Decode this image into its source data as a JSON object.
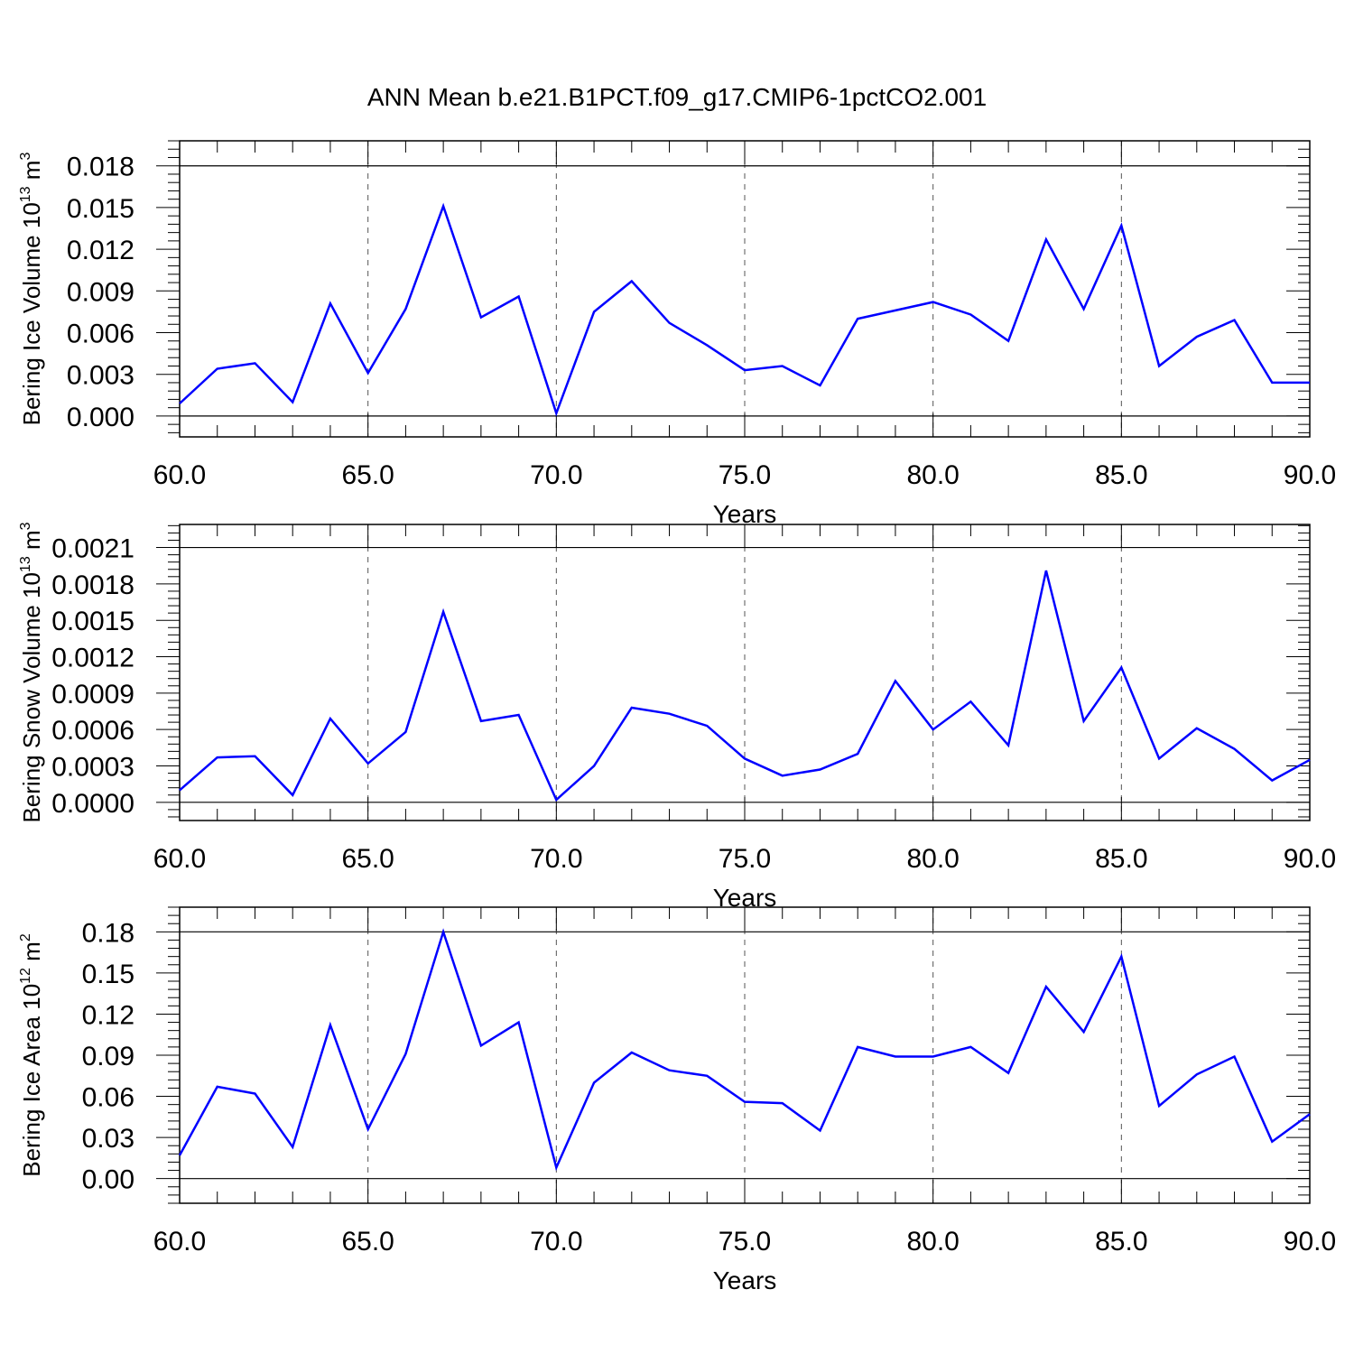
{
  "title": "ANN Mean b.e21.B1PCT.f09_g17.CMIP6-1pctCO2.001",
  "colors": {
    "line": "#0000ff",
    "axis": "#000000",
    "grid": "#555555"
  },
  "chart_data": [
    {
      "type": "line",
      "xlabel": "Years",
      "ylabel": {
        "base": "Bering Ice Volume 10",
        "exp": "13",
        "unit": " m",
        "unit_exp": "3"
      },
      "xlim": [
        60,
        90
      ],
      "ylim": [
        -0.0015,
        0.0198
      ],
      "xticks": [
        60,
        65,
        70,
        75,
        80,
        85,
        90
      ],
      "xtick_labels": [
        "60.0",
        "65.0",
        "70.0",
        "75.0",
        "80.0",
        "85.0",
        "90.0"
      ],
      "yticks": [
        0,
        0.003,
        0.006,
        0.009,
        0.012,
        0.015,
        0.018
      ],
      "ytick_labels": [
        "0.000",
        "0.003",
        "0.006",
        "0.009",
        "0.012",
        "0.015",
        "0.018"
      ],
      "x": [
        60,
        61,
        62,
        63,
        64,
        65,
        66,
        67,
        68,
        69,
        70,
        71,
        72,
        73,
        74,
        75,
        76,
        77,
        78,
        79,
        80,
        81,
        82,
        83,
        84,
        85,
        86,
        87,
        88,
        89,
        90
      ],
      "series": [
        {
          "values": [
            0.0009,
            0.0034,
            0.0038,
            0.001,
            0.0081,
            0.0031,
            0.0077,
            0.0151,
            0.0071,
            0.0086,
            0.0002,
            0.0075,
            0.0097,
            0.0067,
            0.0051,
            0.0033,
            0.0036,
            0.0022,
            0.007,
            0.0076,
            0.0082,
            0.0073,
            0.0054,
            0.0127,
            0.0077,
            0.0137,
            0.0036,
            0.0057,
            0.0069,
            0.0024,
            0.0024
          ]
        }
      ]
    },
    {
      "type": "line",
      "xlabel": "Years",
      "ylabel": {
        "base": "Bering Snow Volume 10",
        "exp": "13",
        "unit": " m",
        "unit_exp": "3"
      },
      "xlim": [
        60,
        90
      ],
      "ylim": [
        -0.00015,
        0.00229
      ],
      "xticks": [
        60,
        65,
        70,
        75,
        80,
        85,
        90
      ],
      "xtick_labels": [
        "60.0",
        "65.0",
        "70.0",
        "75.0",
        "80.0",
        "85.0",
        "90.0"
      ],
      "yticks": [
        0,
        0.0003,
        0.0006,
        0.0009,
        0.0012,
        0.0015,
        0.0018,
        0.0021
      ],
      "ytick_labels": [
        "0.0000",
        "0.0003",
        "0.0006",
        "0.0009",
        "0.0012",
        "0.0015",
        "0.0018",
        "0.0021"
      ],
      "x": [
        60,
        61,
        62,
        63,
        64,
        65,
        66,
        67,
        68,
        69,
        70,
        71,
        72,
        73,
        74,
        75,
        76,
        77,
        78,
        79,
        80,
        81,
        82,
        83,
        84,
        85,
        86,
        87,
        88,
        89,
        90
      ],
      "series": [
        {
          "values": [
            0.0001,
            0.00037,
            0.00038,
            6e-05,
            0.00069,
            0.00032,
            0.00058,
            0.00157,
            0.00067,
            0.00072,
            2e-05,
            0.0003,
            0.00078,
            0.00073,
            0.00063,
            0.00036,
            0.00022,
            0.00027,
            0.0004,
            0.001,
            0.0006,
            0.00083,
            0.00047,
            0.00191,
            0.00067,
            0.00111,
            0.00036,
            0.00061,
            0.00044,
            0.00018,
            0.00035
          ]
        }
      ]
    },
    {
      "type": "line",
      "xlabel": "Years",
      "ylabel": {
        "base": "Bering Ice Area 10",
        "exp": "12",
        "unit": " m",
        "unit_exp": "2"
      },
      "xlim": [
        60,
        90
      ],
      "ylim": [
        -0.018,
        0.198
      ],
      "xticks": [
        60,
        65,
        70,
        75,
        80,
        85,
        90
      ],
      "xtick_labels": [
        "60.0",
        "65.0",
        "70.0",
        "75.0",
        "80.0",
        "85.0",
        "90.0"
      ],
      "yticks": [
        0,
        0.03,
        0.06,
        0.09,
        0.12,
        0.15,
        0.18
      ],
      "ytick_labels": [
        "0.00",
        "0.03",
        "0.06",
        "0.09",
        "0.12",
        "0.15",
        "0.18"
      ],
      "x": [
        60,
        61,
        62,
        63,
        64,
        65,
        66,
        67,
        68,
        69,
        70,
        71,
        72,
        73,
        74,
        75,
        76,
        77,
        78,
        79,
        80,
        81,
        82,
        83,
        84,
        85,
        86,
        87,
        88,
        89,
        90
      ],
      "series": [
        {
          "values": [
            0.017,
            0.067,
            0.062,
            0.023,
            0.112,
            0.036,
            0.091,
            0.18,
            0.097,
            0.114,
            0.008,
            0.07,
            0.092,
            0.079,
            0.075,
            0.056,
            0.055,
            0.035,
            0.096,
            0.089,
            0.089,
            0.096,
            0.077,
            0.14,
            0.107,
            0.162,
            0.053,
            0.076,
            0.089,
            0.027,
            0.047
          ]
        }
      ]
    }
  ]
}
